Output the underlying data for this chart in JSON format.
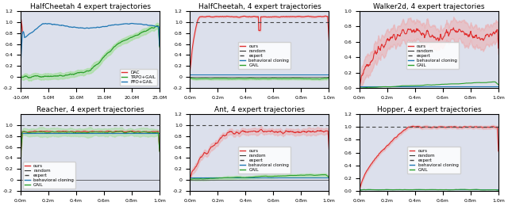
{
  "titles": [
    "HalfCheetah 4 expert trajectories",
    "HalfCheetah, 4 expert trajectories",
    "Walker2d, 4 expert trajectories",
    "Reacher, 4 expert trajectories",
    "Ant, 4 expert trajectories",
    "Hopper, 4 expert trajectories"
  ],
  "bg_color": "#dce0ec",
  "fig_bg": "#ffffff",
  "red": "#e03030",
  "red_fill": "#f0a0a0",
  "green": "#2ca02c",
  "green_fill": "#98df8a",
  "blue_solid": "#1f77b4",
  "dashed_color": "#444444",
  "orange": "#ff7f0e",
  "font_size": 6.5
}
